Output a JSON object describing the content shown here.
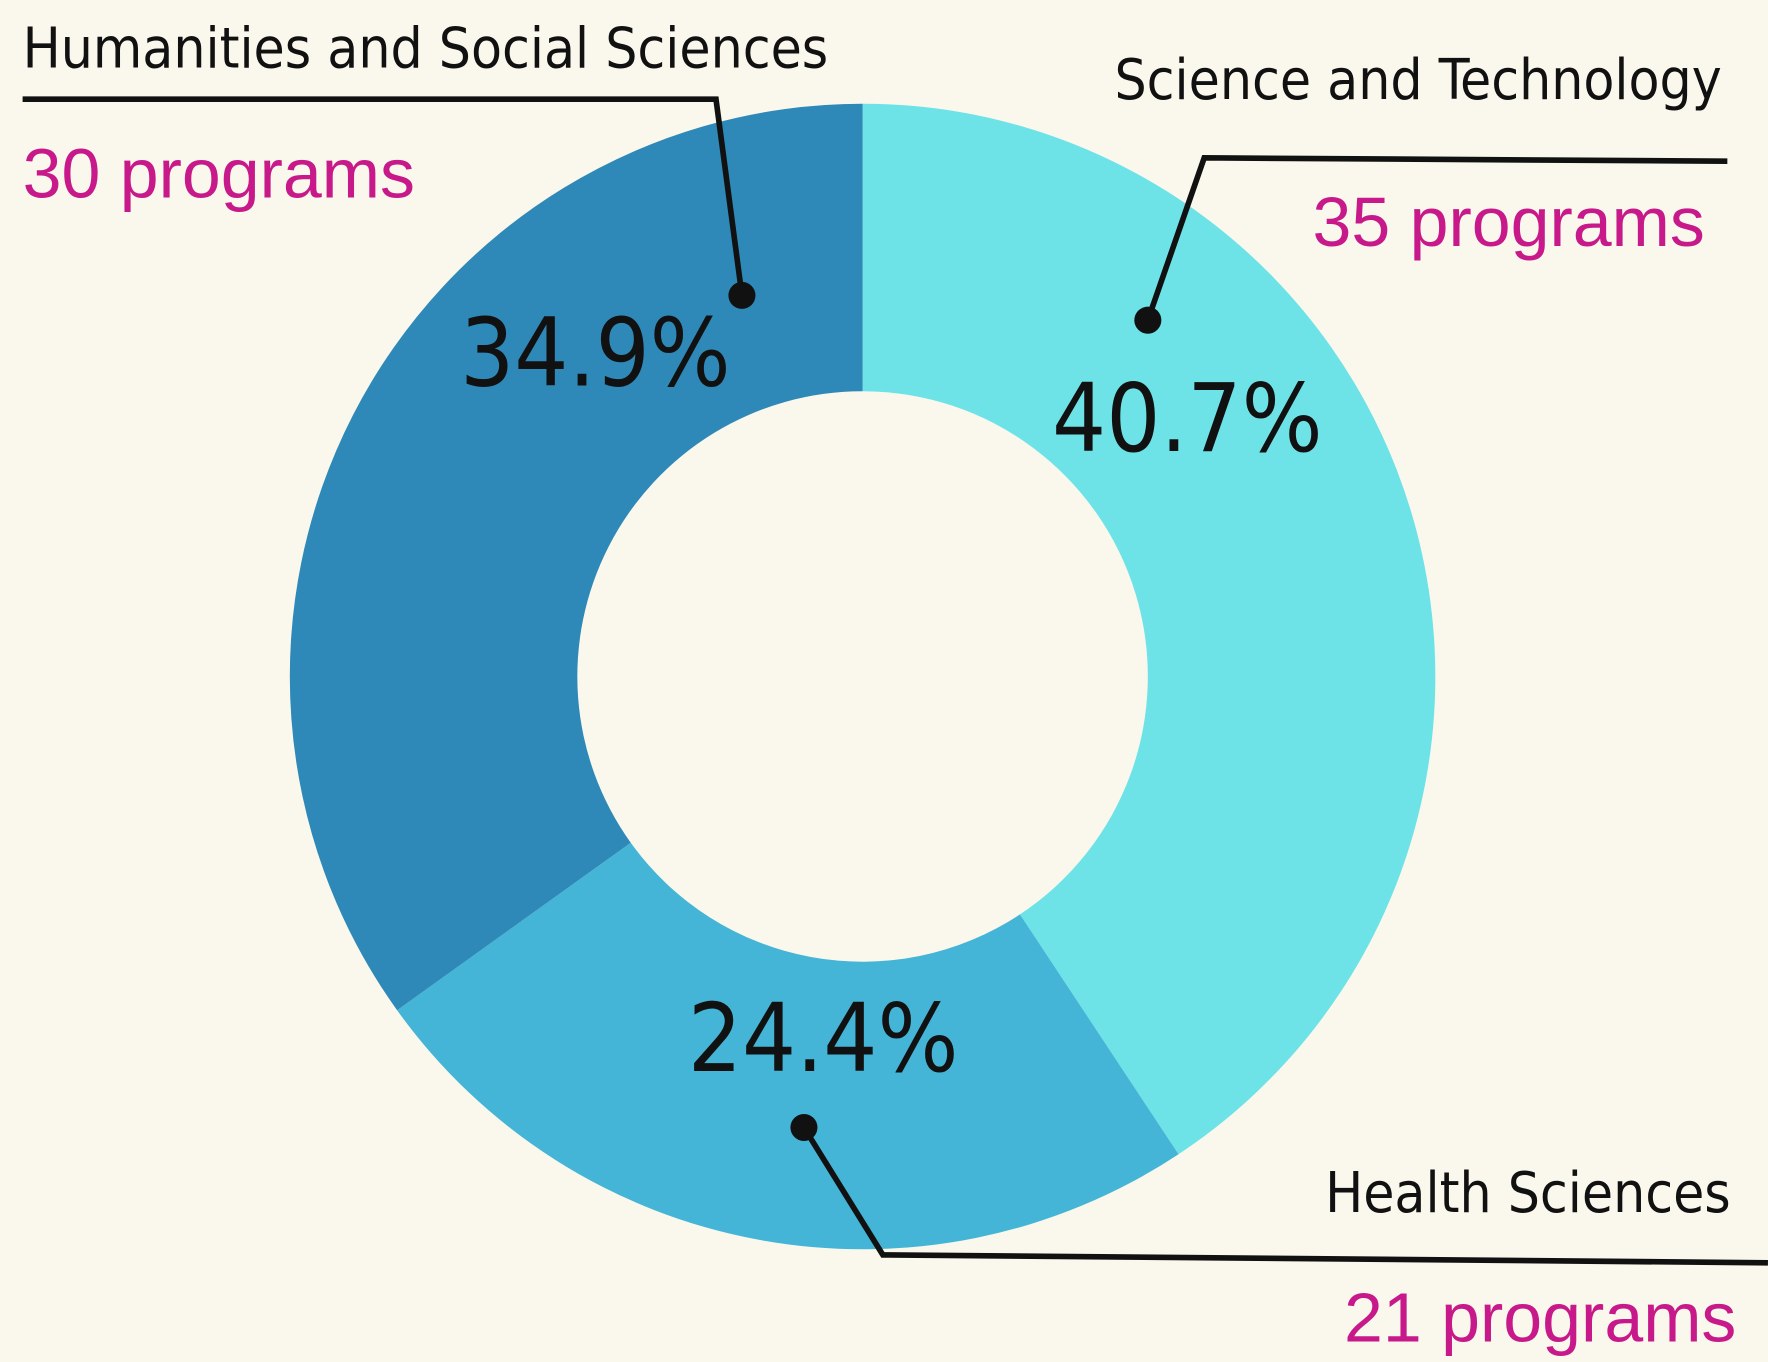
{
  "chart_data": {
    "type": "donut",
    "categories": [
      "Science and Technology",
      "Health Sciences",
      "Humanities and Social Sciences"
    ],
    "values": [
      40.7,
      24.4,
      34.9
    ],
    "value_labels": [
      "40.7%",
      "24.4%",
      "34.9%"
    ],
    "programs": [
      "35 programs",
      "21 programs",
      "30 programs"
    ],
    "colors": [
      "#6de3e8",
      "#44b5d6",
      "#2e89b8"
    ]
  }
}
